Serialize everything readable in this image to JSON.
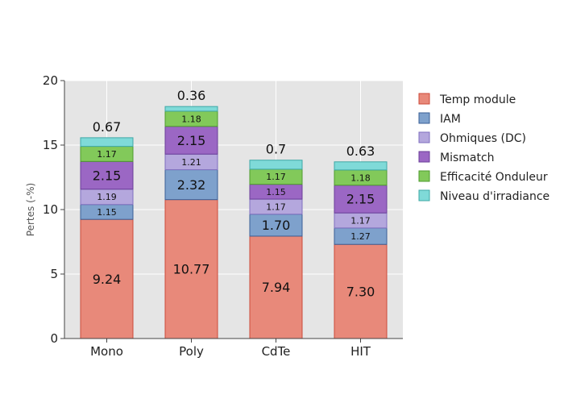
{
  "chart_data": {
    "type": "bar",
    "stacked": true,
    "categories": [
      "Mono",
      "Poly",
      "CdTe",
      "HIT"
    ],
    "ylabel": "Pertes (-%)",
    "ylim": [
      0,
      20
    ],
    "yticks": [
      0,
      5,
      10,
      15,
      20
    ],
    "grid": true,
    "legend_position": "right",
    "series": [
      {
        "name": "Temp module",
        "color": "#e8897a",
        "edge": "#cc4a3a",
        "values": [
          9.24,
          10.77,
          7.94,
          7.3
        ],
        "labels": [
          "9.24",
          "10.77",
          "7.94",
          "7.30"
        ]
      },
      {
        "name": "IAM",
        "color": "#7ea1cc",
        "edge": "#3a5f96",
        "values": [
          1.15,
          2.32,
          1.7,
          1.27
        ],
        "labels": [
          "1.15",
          "2.32",
          "1.70",
          "1.27"
        ]
      },
      {
        "name": "Ohmiques (DC)",
        "color": "#b4a7dd",
        "edge": "#7f6fbf",
        "values": [
          1.19,
          1.21,
          1.17,
          1.17
        ],
        "labels": [
          "1.19",
          "1.21",
          "1.17",
          "1.17"
        ]
      },
      {
        "name": "Mismatch",
        "color": "#9b67c4",
        "edge": "#6b3f99",
        "values": [
          2.15,
          2.15,
          1.15,
          2.15
        ],
        "labels": [
          "2.15",
          "2.15",
          "1.15",
          "2.15"
        ]
      },
      {
        "name": "Efficacité Onduleur",
        "color": "#82c95a",
        "edge": "#4e9a2e",
        "values": [
          1.17,
          1.18,
          1.17,
          1.18
        ],
        "labels": [
          "1.17",
          "1.18",
          "1.17",
          "1.18"
        ]
      },
      {
        "name": "Niveau d'irradiance",
        "color": "#7fdad8",
        "edge": "#3fa8a6",
        "values": [
          0.67,
          0.36,
          0.7,
          0.63
        ],
        "labels": [
          "0.67",
          "0.36",
          "0.7",
          "0.63"
        ]
      }
    ]
  }
}
